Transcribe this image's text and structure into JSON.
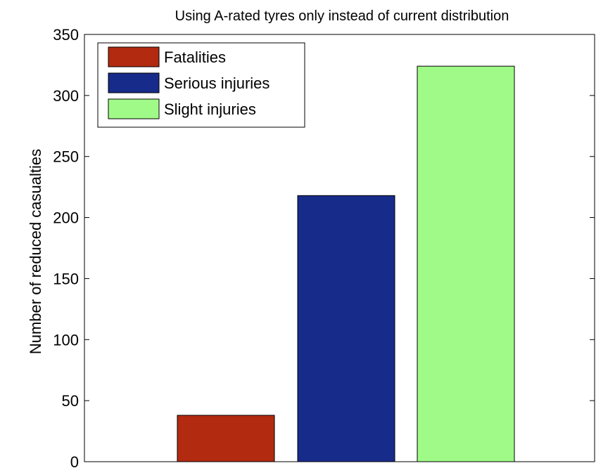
{
  "chart_data": {
    "type": "bar",
    "title": "Using A-rated tyres only instead of current distribution",
    "xlabel": "",
    "ylabel": "Number of reduced casualties",
    "ylim": [
      0,
      350
    ],
    "yticks": [
      0,
      50,
      100,
      150,
      200,
      250,
      300,
      350
    ],
    "grid": false,
    "legend_position": "top-left",
    "series": [
      {
        "name": "Fatalities",
        "value": 38,
        "color": "#b22a10"
      },
      {
        "name": "Serious injuries",
        "value": 218,
        "color": "#172b8a"
      },
      {
        "name": "Slight injuries",
        "value": 324,
        "color": "#a0fa88"
      }
    ]
  }
}
